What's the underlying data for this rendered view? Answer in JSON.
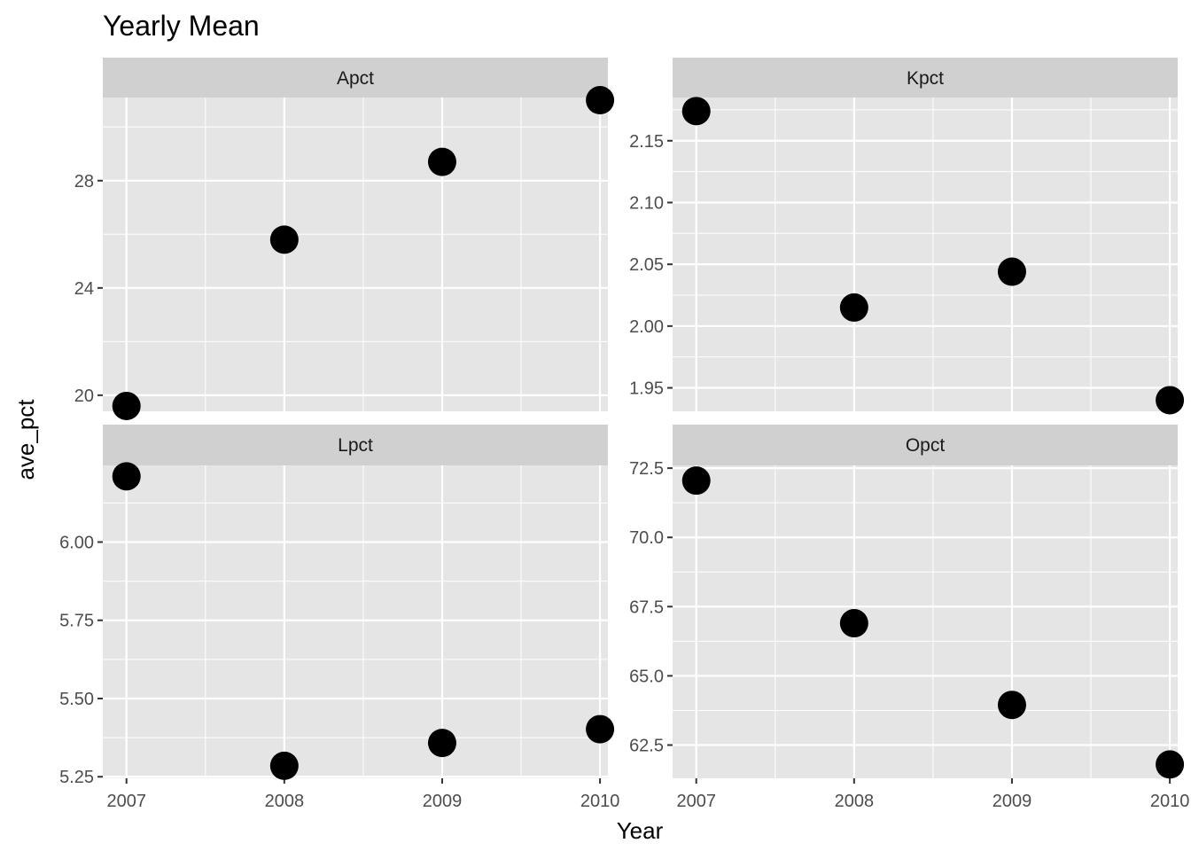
{
  "chart_data": {
    "type": "scatter",
    "title": "Yearly Mean",
    "xlabel": "Year",
    "ylabel": "ave_pct",
    "x": [
      2007,
      2008,
      2009,
      2010
    ],
    "x_ticks": [
      "2007",
      "2008",
      "2009",
      "2010"
    ],
    "xlim": [
      2006.85,
      2010.05
    ],
    "grid": true,
    "panels": [
      {
        "name": "Apct",
        "values": [
          19.6,
          25.8,
          28.7,
          31.0
        ],
        "ylim": [
          19.4,
          31.1
        ],
        "y_ticks": [
          20,
          24,
          28
        ],
        "y_tick_labels": [
          "20",
          "24",
          "28"
        ]
      },
      {
        "name": "Kpct",
        "values": [
          2.174,
          2.015,
          2.044,
          1.94
        ],
        "ylim": [
          1.931,
          2.185
        ],
        "y_ticks": [
          1.95,
          2.0,
          2.05,
          2.1,
          2.15
        ],
        "y_tick_labels": [
          "1.95",
          "2.00",
          "2.05",
          "2.10",
          "2.15"
        ]
      },
      {
        "name": "Lpct",
        "values": [
          6.21,
          5.285,
          5.358,
          5.402
        ],
        "ylim": [
          5.245,
          6.245
        ],
        "y_ticks": [
          5.25,
          5.5,
          5.75,
          6.0
        ],
        "y_tick_labels": [
          "5.25",
          "5.50",
          "5.75",
          "6.00"
        ]
      },
      {
        "name": "Opct",
        "values": [
          72.05,
          66.9,
          63.95,
          61.8
        ],
        "ylim": [
          61.3,
          72.6
        ],
        "y_ticks": [
          62.5,
          65.0,
          67.5,
          70.0,
          72.5
        ],
        "y_tick_labels": [
          "62.5",
          "65.0",
          "67.5",
          "70.0",
          "72.5"
        ]
      }
    ],
    "colors": {
      "panel_background": "#e5e5e5",
      "strip_background": "#d0d0d0",
      "grid": "#ffffff",
      "point": "#000000",
      "tick_text": "#4d4d4d",
      "tick_mark": "#333333"
    }
  }
}
